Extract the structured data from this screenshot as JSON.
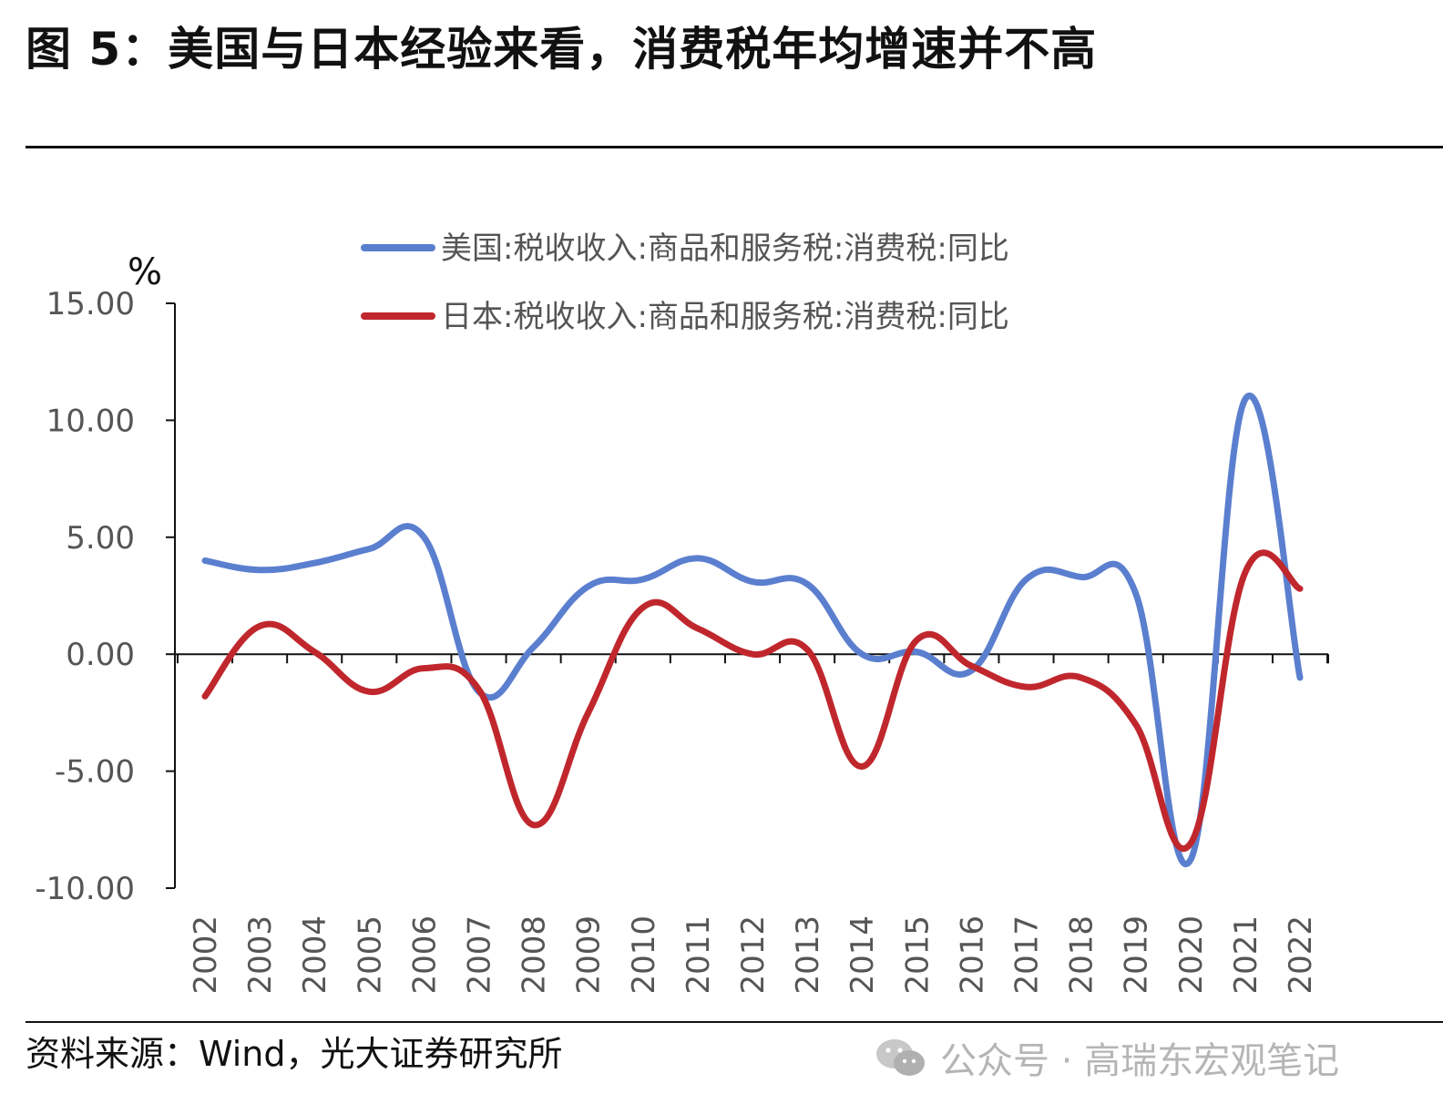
{
  "title": "图 5：美国与日本经验来看，消费税年均增速并不高",
  "source": "资料来源：Wind，光大证券研究所",
  "watermark": {
    "icon": "wechat-icon",
    "text": "公众号 · 高瑞东宏观笔记"
  },
  "chart_data": {
    "type": "line",
    "unit": "%",
    "ylim": [
      -10,
      15
    ],
    "yticks": [
      -10,
      -5,
      0,
      5,
      10,
      15
    ],
    "ytick_labels": [
      "-10.00",
      "-5.00",
      "0.00",
      "5.00",
      "10.00",
      "15.00"
    ],
    "categories": [
      "2002",
      "2003",
      "2004",
      "2005",
      "2006",
      "2007",
      "2008",
      "2009",
      "2010",
      "2011",
      "2012",
      "2013",
      "2014",
      "2015",
      "2016",
      "2017",
      "2018",
      "2019",
      "2020",
      "2021",
      "2022"
    ],
    "legend_position": "top",
    "grid": false,
    "series": [
      {
        "name": "美国:税收收入:商品和服务税:消费税:同比",
        "color": "#5b7fcf",
        "values": [
          4.0,
          3.6,
          3.9,
          4.5,
          5.0,
          -1.6,
          0.3,
          2.9,
          3.2,
          4.1,
          3.1,
          3.0,
          0.0,
          0.1,
          -0.7,
          3.2,
          3.3,
          2.6,
          -8.8,
          10.9,
          -1.0
        ]
      },
      {
        "name": "日本:税收收入:商品和服务税:消费税:同比",
        "color": "#c0272d",
        "values": [
          -1.8,
          1.2,
          0.1,
          -1.6,
          -0.6,
          -1.5,
          -7.3,
          -2.5,
          2.0,
          1.1,
          0.0,
          0.2,
          -4.8,
          0.6,
          -0.5,
          -1.4,
          -1.0,
          -3.0,
          -8.1,
          3.5,
          2.8
        ]
      }
    ]
  }
}
